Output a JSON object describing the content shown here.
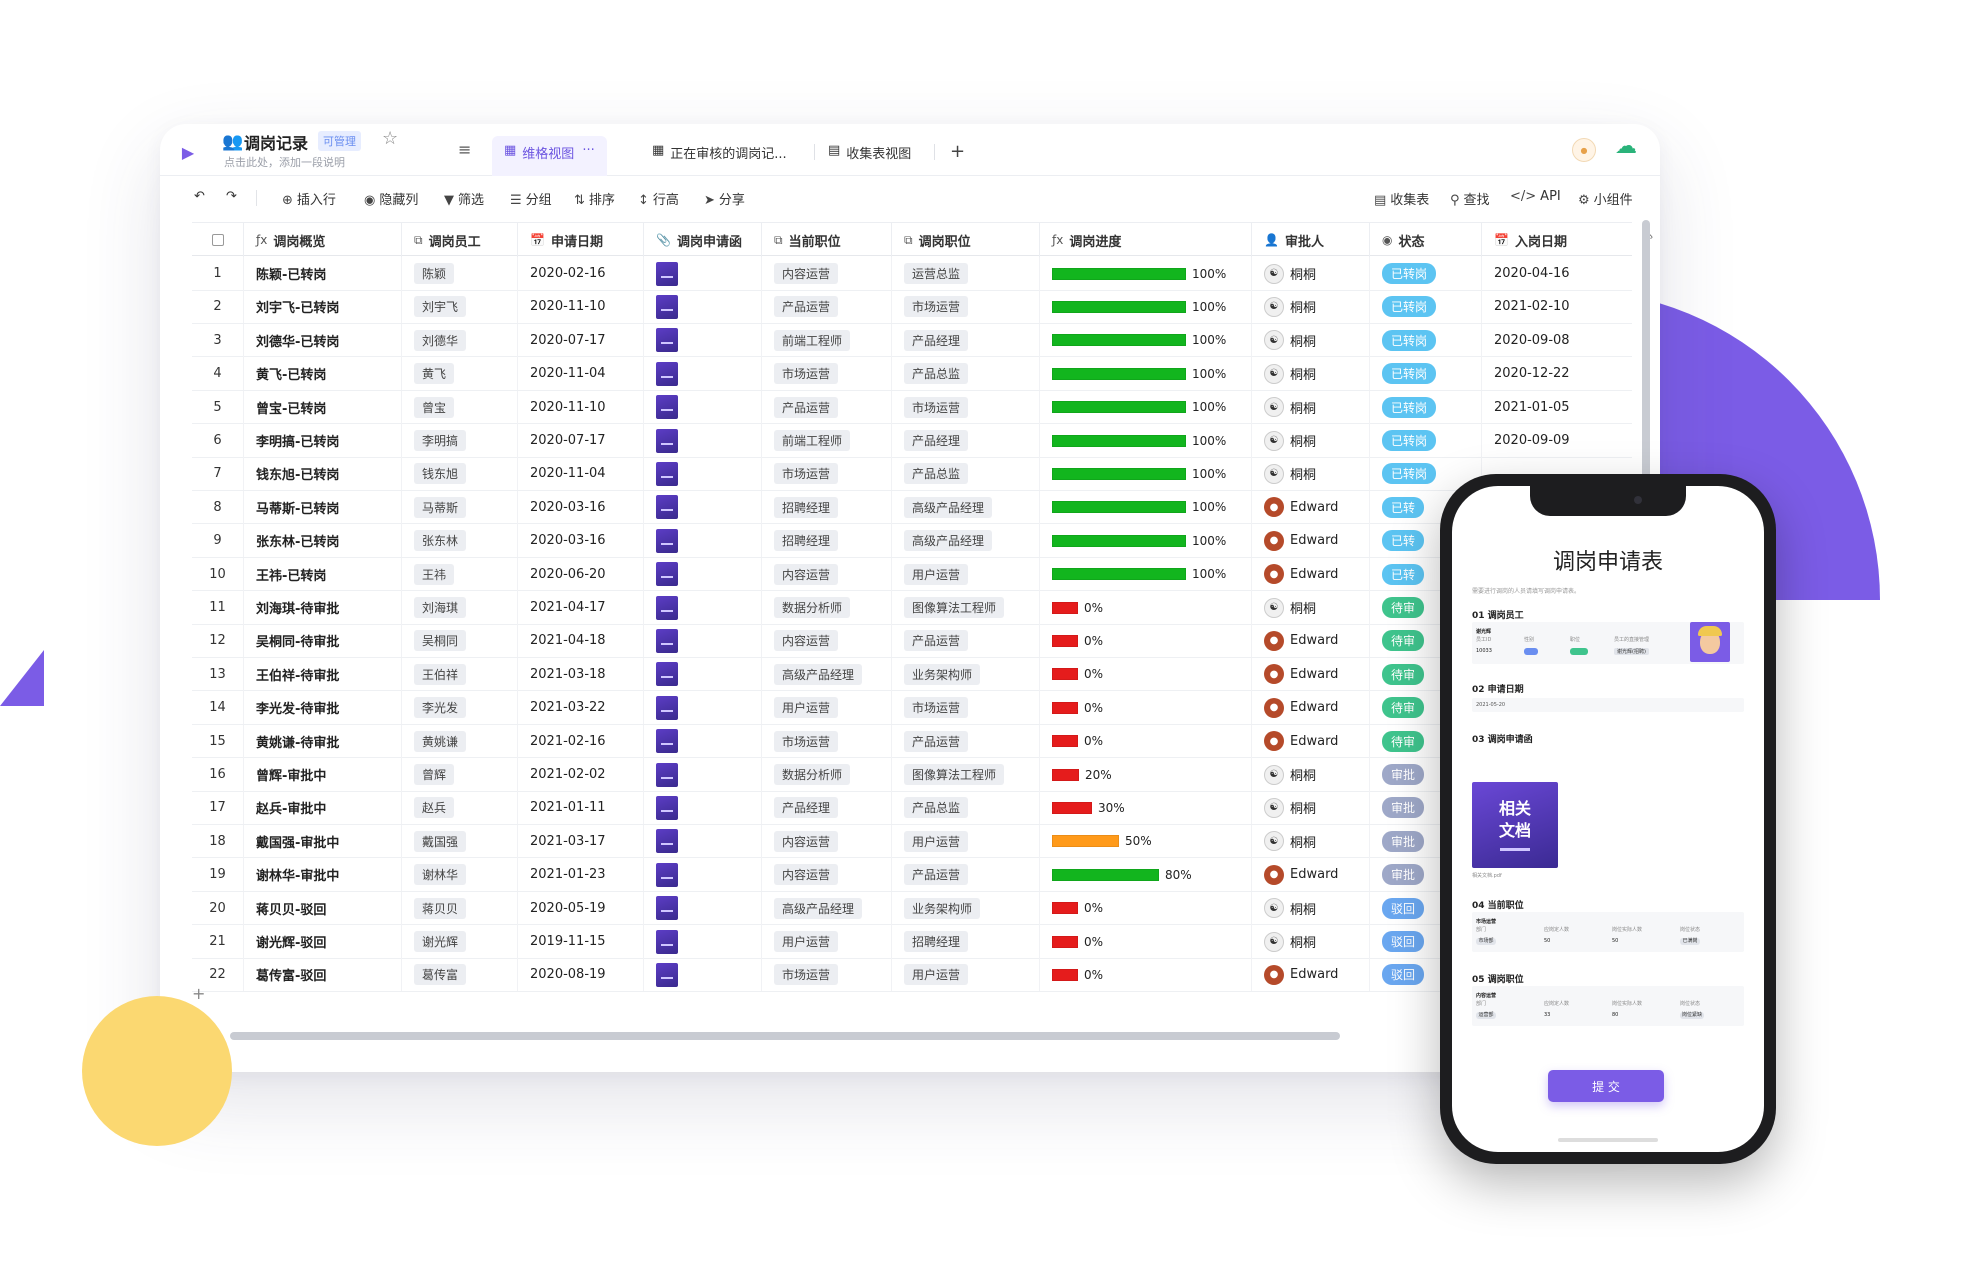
{
  "header": {
    "title": "调岗记录",
    "permission": "可管理",
    "description": "点击此处，添加一段说明"
  },
  "views": [
    {
      "label": "维格视图",
      "more": "···"
    },
    {
      "label": "正在审核的调岗记..."
    },
    {
      "label": "收集表视图"
    }
  ],
  "add_view": "+",
  "toolbar": {
    "insert_row": "插入行",
    "hide_columns": "隐藏列",
    "filter": "筛选",
    "group": "分组",
    "sort": "排序",
    "row_height": "行高",
    "share": "分享",
    "form": "收集表",
    "find": "查找",
    "api": "API",
    "widget": "小组件"
  },
  "columns": [
    "调岗概览",
    "调岗员工",
    "申请日期",
    "调岗申请函",
    "当前职位",
    "调岗职位",
    "调岗进度",
    "审批人",
    "状态",
    "入岗日期"
  ],
  "colors": {
    "accent": "#7b5ce6",
    "progress_green": "#12b51e",
    "progress_red": "#e51c1c",
    "progress_orange": "#ff9a1a",
    "status_transferred": "#5cc4f2",
    "status_pending": "#3fc48d",
    "status_in_review": "#9ea8c8",
    "status_rejected": "#6aa7f0"
  },
  "rows": [
    {
      "no": "1",
      "overview": "陈颖-已转岗",
      "employee": "陈颖",
      "date": "2020-02-16",
      "current": "内容运营",
      "target": "运营总监",
      "progress": 100,
      "pct": "100%",
      "approver": "桐桐",
      "status": "已转岗",
      "start": "2020-04-16"
    },
    {
      "no": "2",
      "overview": "刘宇飞-已转岗",
      "employee": "刘宇飞",
      "date": "2020-11-10",
      "current": "产品运营",
      "target": "市场运营",
      "progress": 100,
      "pct": "100%",
      "approver": "桐桐",
      "status": "已转岗",
      "start": "2021-02-10"
    },
    {
      "no": "3",
      "overview": "刘德华-已转岗",
      "employee": "刘德华",
      "date": "2020-07-17",
      "current": "前端工程师",
      "target": "产品经理",
      "progress": 100,
      "pct": "100%",
      "approver": "桐桐",
      "status": "已转岗",
      "start": "2020-09-08"
    },
    {
      "no": "4",
      "overview": "黄飞-已转岗",
      "employee": "黄飞",
      "date": "2020-11-04",
      "current": "市场运营",
      "target": "产品总监",
      "progress": 100,
      "pct": "100%",
      "approver": "桐桐",
      "status": "已转岗",
      "start": "2020-12-22"
    },
    {
      "no": "5",
      "overview": "曾宝-已转岗",
      "employee": "曾宝",
      "date": "2020-11-10",
      "current": "产品运营",
      "target": "市场运营",
      "progress": 100,
      "pct": "100%",
      "approver": "桐桐",
      "status": "已转岗",
      "start": "2021-01-05"
    },
    {
      "no": "6",
      "overview": "李明搞-已转岗",
      "employee": "李明搞",
      "date": "2020-07-17",
      "current": "前端工程师",
      "target": "产品经理",
      "progress": 100,
      "pct": "100%",
      "approver": "桐桐",
      "status": "已转岗",
      "start": "2020-09-09"
    },
    {
      "no": "7",
      "overview": "钱东旭-已转岗",
      "employee": "钱东旭",
      "date": "2020-11-04",
      "current": "市场运营",
      "target": "产品总监",
      "progress": 100,
      "pct": "100%",
      "approver": "桐桐",
      "status": "已转岗",
      "start": ""
    },
    {
      "no": "8",
      "overview": "马蒂斯-已转岗",
      "employee": "马蒂斯",
      "date": "2020-03-16",
      "current": "招聘经理",
      "target": "高级产品经理",
      "progress": 100,
      "pct": "100%",
      "approver": "Edward",
      "status": "已转",
      "start": ""
    },
    {
      "no": "9",
      "overview": "张东林-已转岗",
      "employee": "张东林",
      "date": "2020-03-16",
      "current": "招聘经理",
      "target": "高级产品经理",
      "progress": 100,
      "pct": "100%",
      "approver": "Edward",
      "status": "已转",
      "start": ""
    },
    {
      "no": "10",
      "overview": "王祎-已转岗",
      "employee": "王祎",
      "date": "2020-06-20",
      "current": "内容运营",
      "target": "用户运营",
      "progress": 100,
      "pct": "100%",
      "approver": "Edward",
      "status": "已转",
      "start": ""
    },
    {
      "no": "11",
      "overview": "刘海琪-待审批",
      "employee": "刘海琪",
      "date": "2021-04-17",
      "current": "数据分析师",
      "target": "图像算法工程师",
      "progress": 0,
      "pct": "0%",
      "approver": "桐桐",
      "status": "待审",
      "start": ""
    },
    {
      "no": "12",
      "overview": "吴桐同-待审批",
      "employee": "吴桐同",
      "date": "2021-04-18",
      "current": "内容运营",
      "target": "产品运营",
      "progress": 0,
      "pct": "0%",
      "approver": "Edward",
      "status": "待审",
      "start": ""
    },
    {
      "no": "13",
      "overview": "王伯祥-待审批",
      "employee": "王伯祥",
      "date": "2021-03-18",
      "current": "高级产品经理",
      "target": "业务架构师",
      "progress": 0,
      "pct": "0%",
      "approver": "Edward",
      "status": "待审",
      "start": ""
    },
    {
      "no": "14",
      "overview": "李光发-待审批",
      "employee": "李光发",
      "date": "2021-03-22",
      "current": "用户运营",
      "target": "市场运营",
      "progress": 0,
      "pct": "0%",
      "approver": "Edward",
      "status": "待审",
      "start": ""
    },
    {
      "no": "15",
      "overview": "黄姚谦-待审批",
      "employee": "黄姚谦",
      "date": "2021-02-16",
      "current": "市场运营",
      "target": "产品运营",
      "progress": 0,
      "pct": "0%",
      "approver": "Edward",
      "status": "待审",
      "start": ""
    },
    {
      "no": "16",
      "overview": "曾辉-审批中",
      "employee": "曾辉",
      "date": "2021-02-02",
      "current": "数据分析师",
      "target": "图像算法工程师",
      "progress": 20,
      "pct": "20%",
      "approver": "桐桐",
      "status": "审批",
      "start": ""
    },
    {
      "no": "17",
      "overview": "赵兵-审批中",
      "employee": "赵兵",
      "date": "2021-01-11",
      "current": "产品经理",
      "target": "产品总监",
      "progress": 30,
      "pct": "30%",
      "approver": "桐桐",
      "status": "审批",
      "start": ""
    },
    {
      "no": "18",
      "overview": "戴国强-审批中",
      "employee": "戴国强",
      "date": "2021-03-17",
      "current": "内容运营",
      "target": "用户运营",
      "progress": 50,
      "pct": "50%",
      "approver": "桐桐",
      "status": "审批",
      "start": ""
    },
    {
      "no": "19",
      "overview": "谢林华-审批中",
      "employee": "谢林华",
      "date": "2021-01-23",
      "current": "内容运营",
      "target": "产品运营",
      "progress": 80,
      "pct": "80%",
      "approver": "Edward",
      "status": "审批",
      "start": ""
    },
    {
      "no": "20",
      "overview": "蒋贝贝-驳回",
      "employee": "蒋贝贝",
      "date": "2020-05-19",
      "current": "高级产品经理",
      "target": "业务架构师",
      "progress": 0,
      "pct": "0%",
      "approver": "桐桐",
      "status": "驳回",
      "start": ""
    },
    {
      "no": "21",
      "overview": "谢光辉-驳回",
      "employee": "谢光辉",
      "date": "2019-11-15",
      "current": "用户运营",
      "target": "招聘经理",
      "progress": 0,
      "pct": "0%",
      "approver": "桐桐",
      "status": "驳回",
      "start": ""
    },
    {
      "no": "22",
      "overview": "葛传富-驳回",
      "employee": "葛传富",
      "date": "2020-08-19",
      "current": "市场运营",
      "target": "用户运营",
      "progress": 0,
      "pct": "0%",
      "approver": "Edward",
      "status": "驳回",
      "start": ""
    }
  ],
  "add_row": "+",
  "phone_form": {
    "title": "调岗申请表",
    "description": "需要进行调岗的人员请填写调岗申请表。",
    "sections": [
      "01 调岗员工",
      "02 申请日期",
      "03 调岗申请函",
      "04 当前职位",
      "05 调岗职位"
    ],
    "employee": {
      "name": "谢光辉",
      "id_label": "员工ID",
      "id": "10033",
      "gender_label": "性别",
      "title_label": "职位",
      "manager_label": "员工的直接管理",
      "manager_value": "谢光辉(招聘)"
    },
    "apply_date": "2021-05-20",
    "doc_card": "相关\n文档",
    "doc_filename": "相关文档.pdf",
    "current_position": {
      "name": "市场运营",
      "dept_label": "部门",
      "dept": "市场部",
      "planned_label": "应岗定人数",
      "planned": "50",
      "actual_label": "岗位实际人数",
      "actual": "50",
      "status_label": "岗位状态",
      "status": "已满岗"
    },
    "target_position": {
      "name": "内容运营",
      "dept_label": "部门",
      "dept": "运营部",
      "planned_label": "应岗定人数",
      "planned": "33",
      "actual_label": "岗位实际人数",
      "actual": "80",
      "status_label": "岗位状态",
      "status": "岗位紧缺"
    },
    "submit": "提 交"
  }
}
